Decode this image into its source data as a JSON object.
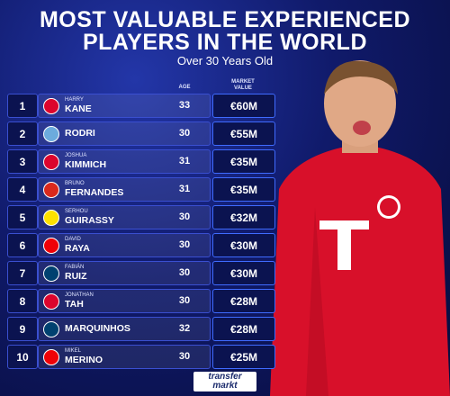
{
  "header": {
    "title_lines": [
      "MOST VALUABLE EXPERIENCED",
      "PLAYERS IN THE WORLD"
    ],
    "subtitle": "Over 30 Years Old"
  },
  "table": {
    "columns": {
      "age": "AGE",
      "market_value": [
        "MARKET",
        "VALUE"
      ]
    },
    "rows": [
      {
        "rank": 1,
        "first_name": "HARRY",
        "last_name": "KANE",
        "age": 33,
        "market_value": "€60M"
      },
      {
        "rank": 2,
        "last_name": "RODRI",
        "age": 30,
        "market_value": "€55M"
      },
      {
        "rank": 3,
        "first_name": "JOSHUA",
        "last_name": "KIMMICH",
        "age": 31,
        "market_value": "€35M"
      },
      {
        "rank": 4,
        "first_name": "BRUNO",
        "last_name": "FERNANDES",
        "age": 31,
        "market_value": "€35M"
      },
      {
        "rank": 5,
        "first_name": "SERHOU",
        "last_name": "GUIRASSY",
        "age": 30,
        "market_value": "€32M"
      },
      {
        "rank": 6,
        "first_name": "DAVID",
        "last_name": "RAYA",
        "age": 30,
        "market_value": "€30M"
      },
      {
        "rank": 7,
        "first_name": "FABIÁN",
        "last_name": "RUIZ",
        "age": 30,
        "market_value": "€30M"
      },
      {
        "rank": 8,
        "first_name": "JONATHAN",
        "last_name": "TAH",
        "age": 30,
        "market_value": "€28M"
      },
      {
        "rank": 9,
        "last_name": "MARQUINHOS",
        "age": 32,
        "market_value": "€28M"
      },
      {
        "rank": 10,
        "first_name": "MIKEL",
        "last_name": "MERINO",
        "age": 30,
        "market_value": "€25M"
      }
    ]
  },
  "footer": {
    "logo": [
      "transfer",
      "markt"
    ]
  }
}
